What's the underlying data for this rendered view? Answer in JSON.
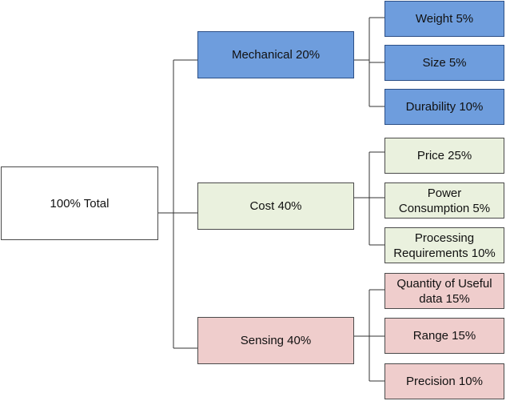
{
  "diagram": {
    "root": {
      "label": "100% Total"
    },
    "categories": [
      {
        "label": "Mechanical 20%",
        "color": "#6e9ddd",
        "children": [
          {
            "label": "Weight 5%"
          },
          {
            "label": "Size 5%"
          },
          {
            "label": "Durability 10%"
          }
        ]
      },
      {
        "label": "Cost  40%",
        "color": "#eaf1de",
        "children": [
          {
            "label": "Price 25%"
          },
          {
            "label": "Power\nConsumption 5%"
          },
          {
            "label": "Processing\nRequirements 10%"
          }
        ]
      },
      {
        "label": "Sensing 40%",
        "color": "#efcdcc",
        "children": [
          {
            "label": "Quantity of Useful\ndata 15%"
          },
          {
            "label": "Range 15%"
          },
          {
            "label": "Precision 10%"
          }
        ]
      }
    ],
    "connector_color": "#333333"
  }
}
